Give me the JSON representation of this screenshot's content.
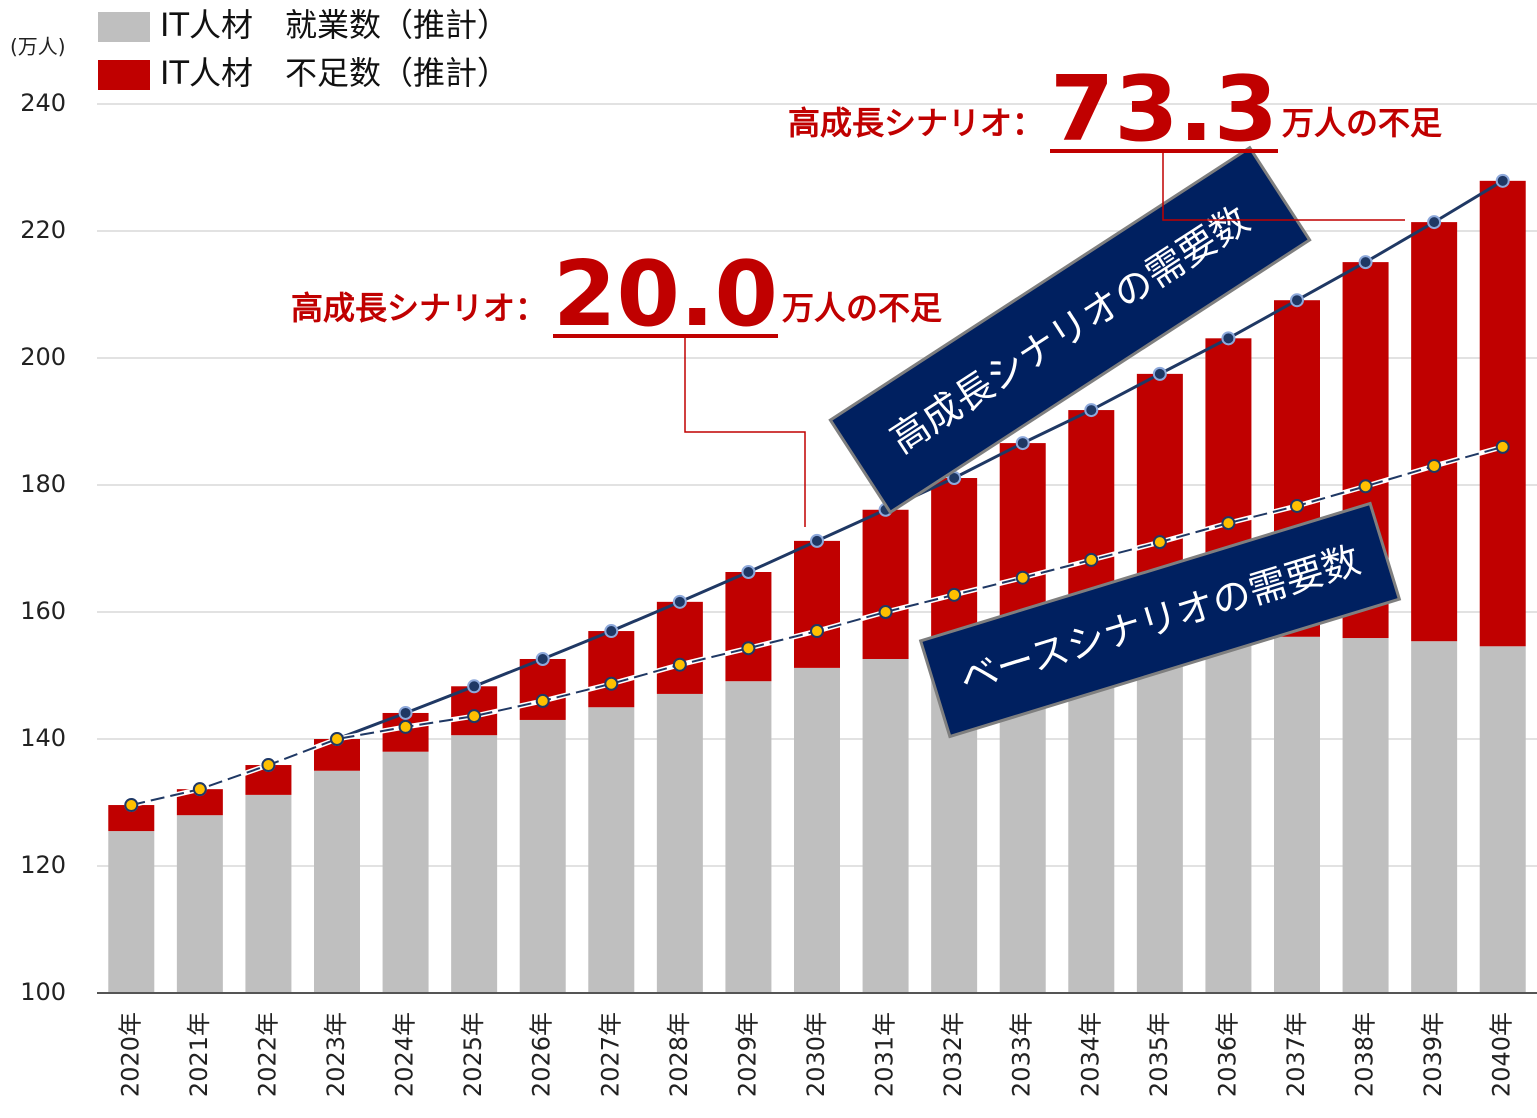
{
  "chart_data": {
    "type": "bar",
    "y_unit": "(万人)",
    "categories": [
      "2020年",
      "2021年",
      "2022年",
      "2023年",
      "2024年",
      "2025年",
      "2026年",
      "2027年",
      "2028年",
      "2029年",
      "2030年",
      "2031年",
      "2032年",
      "2033年",
      "2034年",
      "2035年",
      "2036年",
      "2037年",
      "2038年",
      "2039年",
      "2040年"
    ],
    "ylim": [
      100,
      240
    ],
    "yticks": [
      100,
      120,
      140,
      160,
      180,
      200,
      220,
      240
    ],
    "grid": true,
    "legend": "top-left",
    "series": [
      {
        "name": "IT人材　就業数（推計）",
        "color": "#bfbfbf",
        "kind": "bar",
        "values": [
          125.5,
          128.0,
          131.2,
          135.0,
          138.0,
          140.6,
          143.0,
          145.0,
          147.1,
          149.1,
          151.2,
          152.6,
          153.7,
          154.6,
          155.4,
          155.9,
          156.0,
          156.1,
          155.9,
          155.4,
          154.6
        ]
      },
      {
        "name": "IT人材　不足数（推計）",
        "color": "#c00000",
        "kind": "bar",
        "values": [
          4.1,
          4.1,
          4.7,
          5.0,
          6.1,
          7.7,
          9.6,
          12.0,
          14.5,
          17.2,
          20.0,
          23.5,
          27.4,
          32.0,
          36.4,
          41.6,
          47.1,
          53.0,
          59.2,
          66.0,
          73.3
        ],
        "value_labels": [
          null,
          null,
          null,
          null,
          null,
          null,
          null,
          null,
          null,
          null,
          "20.0",
          null,
          null,
          null,
          null,
          null,
          null,
          null,
          null,
          null,
          "73.3"
        ]
      },
      {
        "name": "高成長シナリオの需要数",
        "color": "#1f3864",
        "kind": "line",
        "marker": "#1f3864",
        "values": [
          129.6,
          132.1,
          135.9,
          140.0,
          144.1,
          148.3,
          152.6,
          157.0,
          161.6,
          166.3,
          171.2,
          176.1,
          181.1,
          186.6,
          191.8,
          197.5,
          203.1,
          209.1,
          215.1,
          221.4,
          227.9
        ]
      },
      {
        "name": "ベースシナリオの需要数",
        "color": "#1f3864",
        "kind": "line",
        "dashed": true,
        "marker": "#ffc000",
        "values": [
          129.6,
          132.1,
          135.9,
          140.0,
          141.9,
          143.6,
          146.0,
          148.7,
          151.7,
          154.3,
          157.0,
          160.0,
          162.7,
          165.4,
          168.2,
          171.0,
          174.0,
          176.7,
          179.8,
          183.0,
          186.0
        ]
      }
    ],
    "annotations": [
      {
        "prefix": "高成長シナリオ：",
        "suffix": "万人の不足"
      },
      {
        "prefix": "高成長シナリオ：",
        "suffix": "万人の不足"
      }
    ]
  }
}
